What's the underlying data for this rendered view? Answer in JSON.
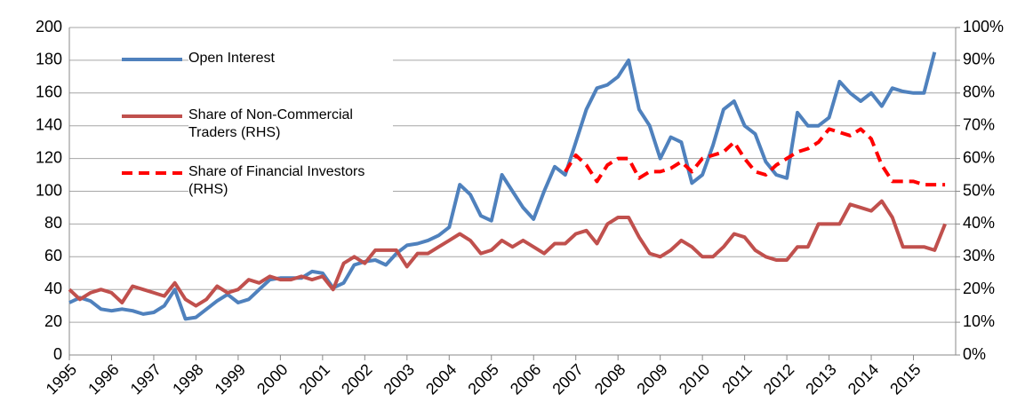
{
  "chart_data": {
    "type": "line",
    "x": [
      1995,
      1995.25,
      1995.5,
      1995.75,
      1996,
      1996.25,
      1996.5,
      1996.75,
      1997,
      1997.25,
      1997.5,
      1997.75,
      1998,
      1998.25,
      1998.5,
      1998.75,
      1999,
      1999.25,
      1999.5,
      1999.75,
      2000,
      2000.25,
      2000.5,
      2000.75,
      2001,
      2001.25,
      2001.5,
      2001.75,
      2002,
      2002.25,
      2002.5,
      2002.75,
      2003,
      2003.25,
      2003.5,
      2003.75,
      2004,
      2004.25,
      2004.5,
      2004.75,
      2005,
      2005.25,
      2005.5,
      2005.75,
      2006,
      2006.25,
      2006.5,
      2006.75,
      2007,
      2007.25,
      2007.5,
      2007.75,
      2008,
      2008.25,
      2008.5,
      2008.75,
      2009,
      2009.25,
      2009.5,
      2009.75,
      2010,
      2010.25,
      2010.5,
      2010.75,
      2011,
      2011.25,
      2011.5,
      2011.75,
      2012,
      2012.25,
      2012.5,
      2012.75,
      2013,
      2013.25,
      2013.5,
      2013.75,
      2014,
      2014.25,
      2014.5,
      2014.75,
      2015,
      2015.25,
      2015.5,
      2015.75
    ],
    "xlim": [
      1995,
      2016
    ],
    "xticks": [
      1995,
      1996,
      1997,
      1998,
      1999,
      2000,
      2001,
      2002,
      2003,
      2004,
      2005,
      2006,
      2007,
      2008,
      2009,
      2010,
      2011,
      2012,
      2013,
      2014,
      2015
    ],
    "ylim": [
      0,
      200
    ],
    "yticks": [
      0,
      20,
      40,
      60,
      80,
      100,
      120,
      140,
      160,
      180,
      200
    ],
    "y2lim": [
      0,
      100
    ],
    "y2ticks": [
      {
        "value": 0,
        "label": "0%"
      },
      {
        "value": 10,
        "label": "10%"
      },
      {
        "value": 20,
        "label": "20%"
      },
      {
        "value": 30,
        "label": "30%"
      },
      {
        "value": 40,
        "label": "40%"
      },
      {
        "value": 50,
        "label": "50%"
      },
      {
        "value": 60,
        "label": "60%"
      },
      {
        "value": 70,
        "label": "70%"
      },
      {
        "value": 80,
        "label": "80%"
      },
      {
        "value": 90,
        "label": "90%"
      },
      {
        "value": 100,
        "label": "100%"
      }
    ],
    "grid": true,
    "legend": "upper left",
    "series": [
      {
        "name": "Open Interest",
        "color": "#4f81bd",
        "dash": false,
        "values": [
          32,
          35,
          33,
          28,
          27,
          28,
          27,
          25,
          26,
          30,
          40,
          22,
          23,
          28,
          33,
          37,
          32,
          34,
          40,
          46,
          47,
          47,
          47,
          51,
          50,
          41,
          44,
          55,
          57,
          58,
          55,
          62,
          67,
          68,
          70,
          73,
          78,
          104,
          98,
          85,
          82,
          110,
          100,
          90,
          83,
          100,
          115,
          110,
          130,
          150,
          163,
          165,
          170,
          180,
          150,
          140,
          120,
          133,
          130,
          105,
          110,
          128,
          150,
          155,
          140,
          135,
          118,
          110,
          108,
          148,
          140,
          140,
          145,
          167,
          160,
          155,
          160,
          152,
          163,
          161,
          160,
          160,
          185,
          null
        ]
      },
      {
        "name": "Share of Non-Commercial Traders (RHS)",
        "color": "#c0504d",
        "dash": false,
        "axis": "y2",
        "values": [
          20,
          17,
          19,
          20,
          19,
          16,
          21,
          20,
          19,
          18,
          22,
          17,
          15,
          17,
          21,
          19,
          20,
          23,
          22,
          24,
          23,
          23,
          24,
          23,
          24,
          20,
          28,
          30,
          28,
          32,
          32,
          32,
          27,
          31,
          31,
          33,
          35,
          37,
          35,
          31,
          32,
          35,
          33,
          35,
          33,
          31,
          34,
          34,
          37,
          38,
          34,
          40,
          42,
          42,
          36,
          31,
          30,
          32,
          35,
          33,
          30,
          30,
          33,
          37,
          36,
          32,
          30,
          29,
          29,
          33,
          33,
          40,
          40,
          40,
          46,
          45,
          44,
          47,
          42,
          33,
          33,
          33,
          32,
          40
        ]
      },
      {
        "name": "Share of Financial Investors (RHS)",
        "color": "#ff0000",
        "dash": true,
        "axis": "y2",
        "values": [
          null,
          null,
          null,
          null,
          null,
          null,
          null,
          null,
          null,
          null,
          null,
          null,
          null,
          null,
          null,
          null,
          null,
          null,
          null,
          null,
          null,
          null,
          null,
          null,
          null,
          null,
          null,
          null,
          null,
          null,
          null,
          null,
          null,
          null,
          null,
          null,
          null,
          null,
          null,
          null,
          null,
          null,
          null,
          null,
          null,
          null,
          null,
          56,
          61,
          58,
          53,
          58,
          60,
          60,
          54,
          56,
          56,
          57,
          59,
          56,
          60,
          61,
          62,
          65,
          60,
          56,
          55,
          58,
          60,
          62,
          63,
          65,
          69,
          68,
          67,
          69,
          66,
          58,
          53,
          53,
          53,
          52,
          52,
          52
        ]
      }
    ]
  }
}
